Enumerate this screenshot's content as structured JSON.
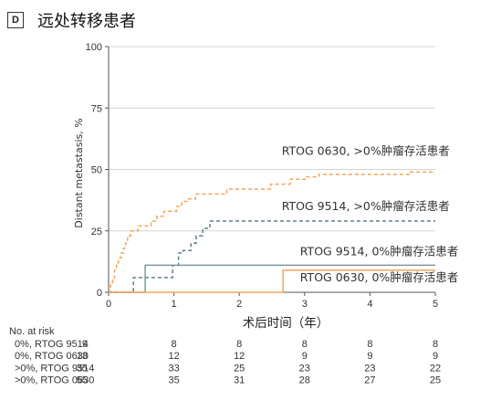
{
  "panel": {
    "letter": "D",
    "title": "远处转移患者"
  },
  "chart_data": {
    "type": "line",
    "step": true,
    "xlabel": "术后时间（年）",
    "ylabel": "Distant metastasis, %",
    "xlim": [
      0,
      5
    ],
    "ylim": [
      0,
      100
    ],
    "xticks": [
      0,
      1,
      2,
      3,
      4,
      5
    ],
    "yticks": [
      0,
      25,
      50,
      75,
      100
    ],
    "grid": "horizontal",
    "series": [
      {
        "name": "RTOG 0630, >0%肿瘤存活患者",
        "color": "#f4a55c",
        "dash": "dashed",
        "points": [
          [
            0,
            0
          ],
          [
            0.03,
            3
          ],
          [
            0.06,
            5
          ],
          [
            0.09,
            9
          ],
          [
            0.12,
            12
          ],
          [
            0.15,
            14
          ],
          [
            0.19,
            16
          ],
          [
            0.23,
            18
          ],
          [
            0.26,
            20
          ],
          [
            0.29,
            23
          ],
          [
            0.34,
            25
          ],
          [
            0.45,
            27
          ],
          [
            0.65,
            29
          ],
          [
            0.74,
            31
          ],
          [
            0.85,
            33
          ],
          [
            1.04,
            35
          ],
          [
            1.12,
            37
          ],
          [
            1.21,
            38
          ],
          [
            1.33,
            40
          ],
          [
            1.81,
            42
          ],
          [
            2.48,
            44
          ],
          [
            2.78,
            46
          ],
          [
            3.03,
            47
          ],
          [
            3.22,
            48
          ],
          [
            4.62,
            49
          ],
          [
            5.0,
            49
          ]
        ]
      },
      {
        "name": "RTOG 9514, >0%肿瘤存活患者",
        "color": "#5e7f8c",
        "dash": "dashed",
        "points": [
          [
            0,
            0
          ],
          [
            0.38,
            6
          ],
          [
            0.64,
            6
          ],
          [
            0.98,
            11
          ],
          [
            1.07,
            16
          ],
          [
            1.14,
            17
          ],
          [
            1.26,
            20
          ],
          [
            1.34,
            23
          ],
          [
            1.44,
            26
          ],
          [
            1.55,
            29
          ],
          [
            5.0,
            29
          ]
        ]
      },
      {
        "name": "RTOG 9514, 0%肿瘤存活患者",
        "color": "#7f98a2",
        "dash": "solid",
        "points": [
          [
            0,
            0
          ],
          [
            0.56,
            11
          ],
          [
            5.0,
            11
          ]
        ]
      },
      {
        "name": "RTOG 0630, 0%肿瘤存活患者",
        "color": "#f4a55c",
        "dash": "solid",
        "points": [
          [
            0,
            0
          ],
          [
            2.67,
            9
          ],
          [
            5.0,
            9
          ]
        ]
      }
    ],
    "annotations": [
      {
        "text": "RTOG 0630, >0%肿瘤存活患者",
        "x": 2.65,
        "y": 56
      },
      {
        "text": "RTOG 9514, >0%肿瘤存活患者",
        "x": 2.65,
        "y": 33.5
      },
      {
        "text": "RTOG 9514, 0%肿瘤存活患者",
        "x": 2.93,
        "y": 15
      },
      {
        "text": "RTOG 0630, 0%肿瘤存活患者",
        "x": 2.93,
        "y": 4.5
      }
    ],
    "risk_table": {
      "title": "No. at risk",
      "times": [
        0,
        1,
        2,
        3,
        4,
        5
      ],
      "rows": [
        {
          "label": "0%, RTOG 9514",
          "values": [
            "9",
            "8",
            "8",
            "8",
            "8",
            "8"
          ]
        },
        {
          "label": "0%, RTOG 0630",
          "values": [
            "13",
            "12",
            "12",
            "9",
            "9",
            "9"
          ]
        },
        {
          "label": ">0%, RTOG 9514",
          "values": [
            "35",
            "33",
            "25",
            "23",
            "23",
            "22"
          ]
        },
        {
          "label": ">0%, RTOG 0630",
          "values": [
            "55",
            "35",
            "31",
            "28",
            "27",
            "25"
          ]
        }
      ]
    }
  }
}
